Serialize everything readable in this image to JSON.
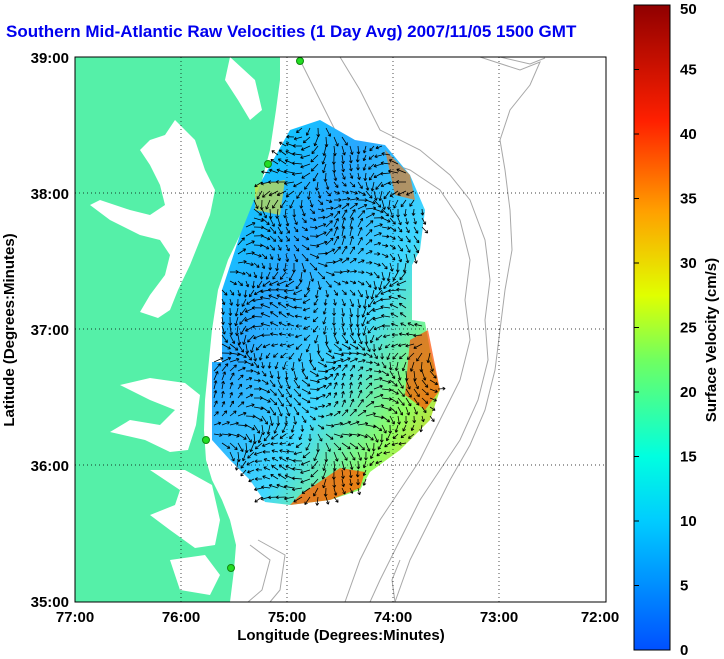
{
  "title": "Southern Mid-Atlantic Raw Velocities (1 Day Avg) 2007/11/05 1500 GMT",
  "axes": {
    "xlabel": "Longitude (Degrees:Minutes)",
    "ylabel": "Latitude (Degrees:Minutes)",
    "xticks": [
      "77:00",
      "76:00",
      "75:00",
      "74:00",
      "73:00",
      "72:00"
    ],
    "yticks": [
      "39:00",
      "38:00",
      "37:00",
      "36:00",
      "35:00"
    ]
  },
  "colorbar": {
    "label": "Surface Velocity (cm/s)",
    "ticks": [
      "0",
      "5",
      "10",
      "15",
      "20",
      "25",
      "30",
      "35",
      "40",
      "45",
      "50"
    ],
    "min": 0,
    "max": 50
  },
  "colors": {
    "land": "#55f0a8",
    "bathymetry": "#a8a8a8",
    "title": "#0000ee",
    "station": "#22dd22"
  },
  "stations": [
    "station-1",
    "station-2",
    "station-3",
    "station-4"
  ]
}
